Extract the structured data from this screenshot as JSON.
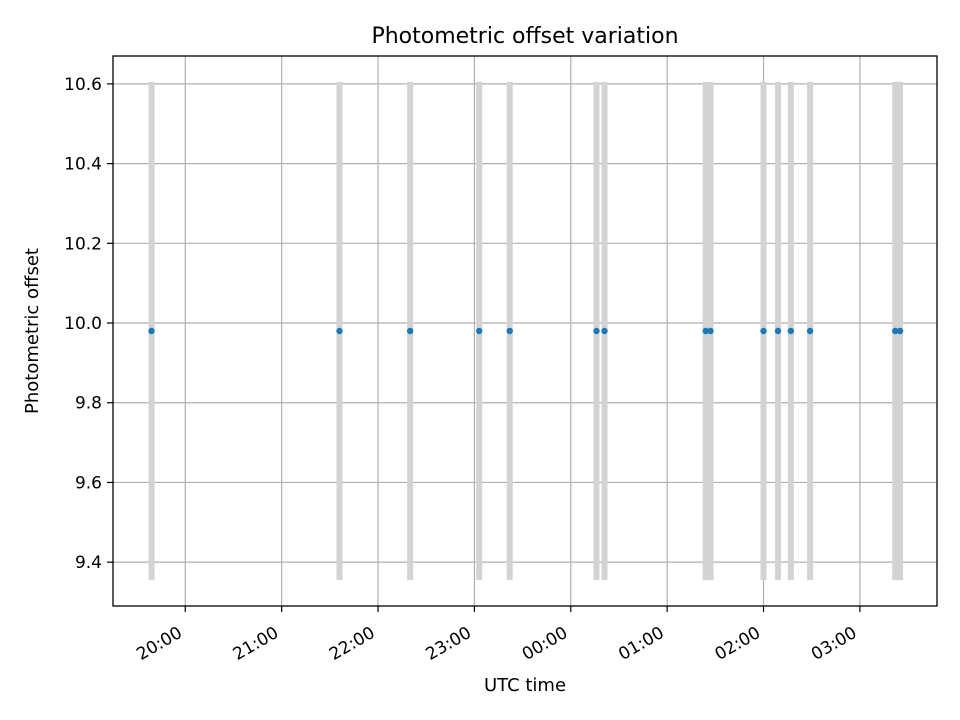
{
  "chart_data": {
    "type": "scatter",
    "title": "Photometric offset variation",
    "xlabel": "UTC time",
    "ylabel": "Photometric offset",
    "x_ticks": [
      "20:00",
      "21:00",
      "22:00",
      "23:00",
      "00:00",
      "01:00",
      "02:00",
      "03:00"
    ],
    "y_ticks": [
      "9.4",
      "9.6",
      "9.8",
      "10.0",
      "10.2",
      "10.4",
      "10.6"
    ],
    "xlim": [
      "19:15",
      "03:48"
    ],
    "ylim": [
      9.29,
      10.67
    ],
    "grid": true,
    "series": [
      {
        "marker_color": "#1f77b4",
        "errorbar_color": "#d3d3d3",
        "points": [
          {
            "time": "19:39",
            "y": 9.98,
            "yerr": 0.625
          },
          {
            "time": "21:36",
            "y": 9.98,
            "yerr": 0.625
          },
          {
            "time": "22:20",
            "y": 9.98,
            "yerr": 0.625
          },
          {
            "time": "23:03",
            "y": 9.98,
            "yerr": 0.625
          },
          {
            "time": "23:22",
            "y": 9.98,
            "yerr": 0.625
          },
          {
            "time": "00:16",
            "y": 9.98,
            "yerr": 0.625
          },
          {
            "time": "00:21",
            "y": 9.98,
            "yerr": 0.625
          },
          {
            "time": "01:24",
            "y": 9.98,
            "yerr": 0.625
          },
          {
            "time": "01:27",
            "y": 9.98,
            "yerr": 0.625
          },
          {
            "time": "02:00",
            "y": 9.98,
            "yerr": 0.625
          },
          {
            "time": "02:09",
            "y": 9.98,
            "yerr": 0.625
          },
          {
            "time": "02:17",
            "y": 9.98,
            "yerr": 0.625
          },
          {
            "time": "02:29",
            "y": 9.98,
            "yerr": 0.625
          },
          {
            "time": "03:22",
            "y": 9.98,
            "yerr": 0.625
          },
          {
            "time": "03:25",
            "y": 9.98,
            "yerr": 0.625
          }
        ]
      }
    ]
  }
}
